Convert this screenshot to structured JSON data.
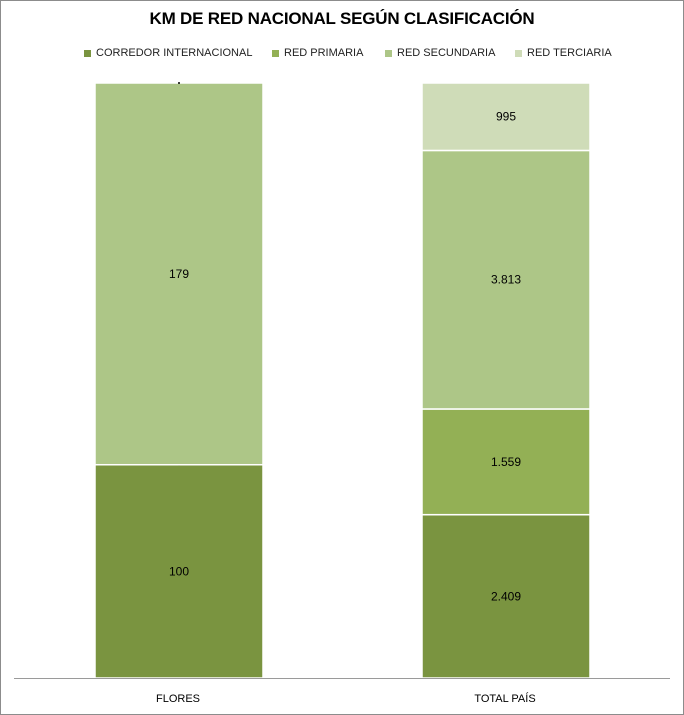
{
  "chart_data": {
    "type": "bar",
    "stacked": true,
    "title": "KM DE RED NACIONAL SEGÚN CLASIFICACIÓN",
    "categories": [
      "FLORES",
      "TOTAL PAÍS"
    ],
    "series": [
      {
        "name": "CORREDOR INTERNACIONAL",
        "color": "#7a9440",
        "values": [
          100,
          2409
        ],
        "labels": [
          "100",
          "2.409"
        ]
      },
      {
        "name": "RED PRIMARIA",
        "color": "#93b055",
        "values": [
          0,
          1559
        ],
        "labels": [
          "",
          "1.559"
        ]
      },
      {
        "name": "RED SECUNDARIA",
        "color": "#adc687",
        "values": [
          179,
          3813
        ],
        "labels": [
          "179",
          "3.813"
        ]
      },
      {
        "name": "RED TERCIARIA",
        "color": "#cfdcb8",
        "values": [
          0,
          995
        ],
        "labels": [
          "",
          "995"
        ]
      }
    ],
    "normalized": true,
    "legend_position": "top",
    "grid": false
  }
}
